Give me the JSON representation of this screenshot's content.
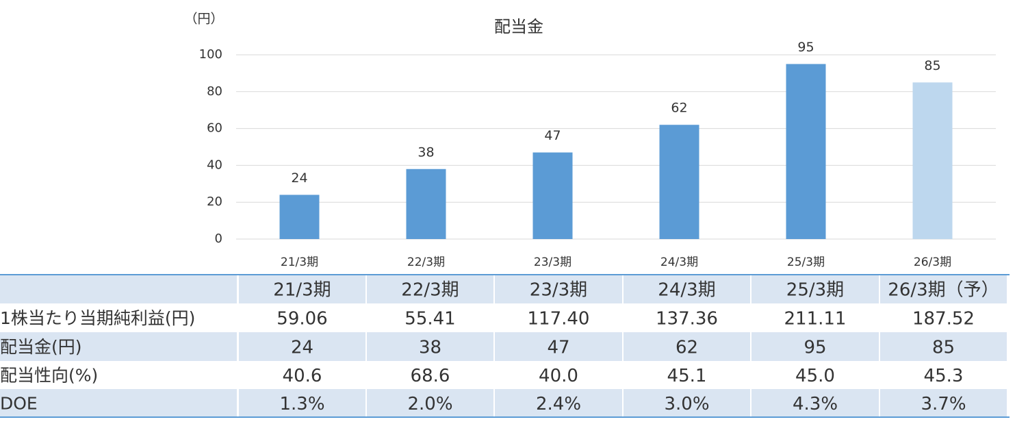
{
  "chart_data": {
    "type": "bar",
    "title": "配当金",
    "y_label": "（円）",
    "categories": [
      "21/3期",
      "22/3期",
      "23/3期",
      "24/3期",
      "25/3期",
      "26/3期"
    ],
    "values": [
      24,
      38,
      47,
      62,
      95,
      85
    ],
    "colors": [
      "#5b9bd5",
      "#5b9bd5",
      "#5b9bd5",
      "#5b9bd5",
      "#5b9bd5",
      "#bdd7ee"
    ],
    "ylim": [
      0,
      100
    ],
    "yticks": [
      0,
      20,
      40,
      60,
      80,
      100
    ],
    "grid": true
  },
  "table": {
    "header": [
      "21/3期",
      "22/3期",
      "23/3期",
      "24/3期",
      "25/3期",
      "26/3期（予）"
    ],
    "rows": [
      [
        "1株当たり当期純利益(円)",
        "59.06",
        "55.41",
        "117.40",
        "137.36",
        "211.11",
        "187.52"
      ],
      [
        "配当金(円)",
        "24",
        "38",
        "47",
        "62",
        "95",
        "85"
      ],
      [
        "配当性向(%)",
        "40.6",
        "68.6",
        "40.0",
        "45.1",
        "45.0",
        "45.3"
      ],
      [
        "DOE",
        "1.3%",
        "2.0%",
        "2.4%",
        "3.0%",
        "4.3%",
        "3.7%"
      ]
    ]
  }
}
